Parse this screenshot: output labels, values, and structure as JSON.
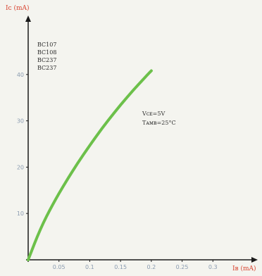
{
  "chart_data": {
    "type": "line",
    "ylabel": "Iᴄ (mA)",
    "xlabel": "Iʙ (mA)",
    "x": [
      0,
      0.02,
      0.04,
      0.06,
      0.08,
      0.1,
      0.12,
      0.14,
      0.16,
      0.18,
      0.2
    ],
    "series": [
      {
        "values": [
          0,
          6.8,
          12.0,
          16.6,
          20.8,
          24.7,
          28.4,
          31.8,
          35.0,
          38.0,
          40.8
        ]
      }
    ],
    "xlim": [
      0,
      0.35
    ],
    "ylim": [
      0,
      50
    ],
    "xticks": [
      "0.05",
      "0.1",
      "0.15",
      "0.2",
      "0.25",
      "0.3"
    ],
    "yticks": [
      "10",
      "20",
      "30",
      "40"
    ],
    "devices": [
      "BC107",
      "BC108",
      "BC237",
      "BC237"
    ],
    "conditions": [
      "Vᴄᴇ=5V",
      "Tᴀᴍʙ=25°C"
    ],
    "colors": {
      "curve": "#6cc04a",
      "axis": "#1a1a1a",
      "label": "#d8432f"
    },
    "grid": false
  }
}
